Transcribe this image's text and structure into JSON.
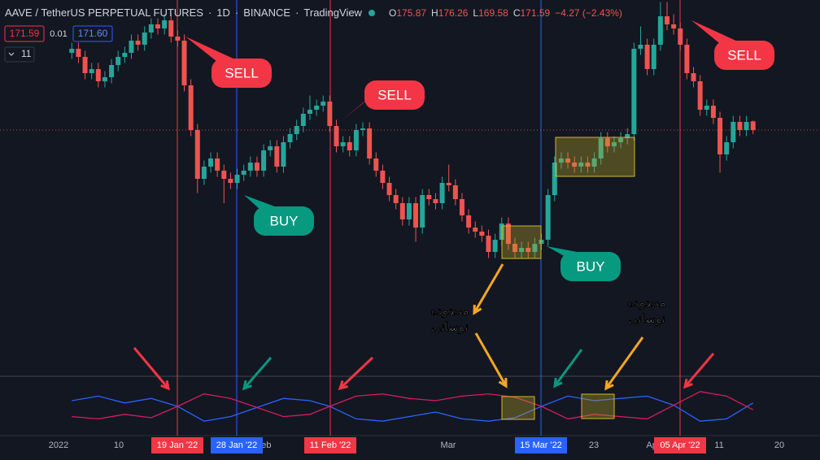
{
  "header": {
    "symbol": "AAVE / TetherUS PERPETUAL FUTURES",
    "interval": "1D",
    "exchange": "BINANCE",
    "source": "TradingView",
    "ohlc": [
      "O",
      "175.87",
      "H",
      "176.26",
      "L",
      "169.58",
      "C",
      "171.59",
      "−4.27 (−2.43%)"
    ],
    "sell_price": "171.59",
    "spread": "0.01",
    "buy_price": "171.60",
    "indicator_count": "11"
  },
  "time_axis": {
    "labels": [
      "2022",
      "10",
      "Feb",
      "Mar",
      "23",
      "Apr",
      "11",
      "20"
    ],
    "marked_dates": [
      "19 Jan '22",
      "28 Jan '22",
      "11 Feb '22",
      "15 Mar '22",
      "05 Apr '22"
    ]
  },
  "chart_data": [
    {
      "type": "candlestick",
      "up_color": "#26a69a",
      "down_color": "#ef5350",
      "ylim": [
        51.6,
        235.6
      ],
      "candles": [
        [
          209.6,
          214.6,
          206.6,
          211.6
        ],
        [
          211.6,
          214.6,
          204.6,
          207.6
        ],
        [
          207.6,
          210.6,
          196.6,
          199.6
        ],
        [
          199.6,
          204.6,
          196.6,
          201.6
        ],
        [
          201.6,
          204.6,
          192.6,
          195.6
        ],
        [
          195.6,
          200.6,
          192.6,
          197.6
        ],
        [
          197.6,
          206.6,
          194.6,
          203.6
        ],
        [
          203.6,
          210.6,
          200.6,
          207.6
        ],
        [
          207.6,
          212.6,
          204.6,
          209.6
        ],
        [
          209.6,
          218.6,
          206.6,
          215.6
        ],
        [
          215.6,
          218.6,
          210.6,
          213.6
        ],
        [
          213.6,
          222.6,
          210.6,
          219.6
        ],
        [
          219.6,
          226.6,
          216.6,
          223.6
        ],
        [
          223.6,
          226.6,
          218.6,
          221.6
        ],
        [
          221.6,
          228.6,
          218.6,
          225.6
        ],
        [
          225.6,
          228.6,
          214.6,
          217.6
        ],
        [
          217.6,
          220.6,
          212.6,
          215.6
        ],
        [
          215.6,
          218.6,
          190.6,
          193.6
        ],
        [
          193.6,
          196.6,
          168.6,
          171.6
        ],
        [
          171.6,
          174.6,
          140.6,
          147.6
        ],
        [
          147.6,
          156.6,
          144.6,
          153.6
        ],
        [
          153.6,
          160.6,
          150.6,
          157.6
        ],
        [
          157.6,
          160.6,
          148.6,
          151.6
        ],
        [
          151.6,
          154.6,
          135.6,
          147.6
        ],
        [
          147.6,
          150.6,
          142.6,
          145.6
        ],
        [
          145.6,
          152.6,
          142.6,
          149.6
        ],
        [
          149.6,
          154.6,
          146.6,
          151.6
        ],
        [
          151.6,
          158.6,
          148.6,
          155.6
        ],
        [
          155.6,
          158.6,
          148.6,
          151.6
        ],
        [
          151.6,
          164.6,
          148.6,
          161.6
        ],
        [
          161.6,
          166.6,
          158.6,
          163.6
        ],
        [
          163.6,
          166.6,
          150.6,
          153.6
        ],
        [
          153.6,
          168.6,
          150.6,
          165.6
        ],
        [
          165.6,
          172.6,
          162.6,
          169.6
        ],
        [
          169.6,
          176.6,
          166.6,
          173.6
        ],
        [
          173.6,
          182.6,
          170.6,
          179.6
        ],
        [
          179.6,
          188.6,
          176.6,
          181.6
        ],
        [
          181.6,
          186.6,
          178.6,
          183.6
        ],
        [
          183.6,
          188.6,
          180.6,
          185.6
        ],
        [
          185.6,
          188.6,
          170.6,
          173.6
        ],
        [
          173.6,
          176.6,
          160.6,
          163.6
        ],
        [
          163.6,
          168.6,
          160.6,
          165.6
        ],
        [
          165.6,
          168.6,
          158.6,
          161.6
        ],
        [
          161.6,
          174.6,
          158.6,
          171.6
        ],
        [
          171.6,
          175.4,
          168.6,
          172.4
        ],
        [
          172.4,
          175.4,
          154.6,
          157.6
        ],
        [
          157.6,
          160.6,
          148.6,
          151.6
        ],
        [
          151.6,
          154.6,
          142.6,
          145.6
        ],
        [
          145.6,
          148.6,
          136.6,
          139.6
        ],
        [
          139.6,
          142.6,
          132.6,
          135.6
        ],
        [
          135.6,
          138.6,
          124.6,
          127.6
        ],
        [
          127.6,
          138.6,
          124.6,
          135.6
        ],
        [
          135.6,
          138.6,
          116.6,
          123.6
        ],
        [
          123.6,
          142.6,
          120.6,
          139.6
        ],
        [
          139.6,
          142.6,
          134.6,
          137.6
        ],
        [
          137.6,
          140.6,
          132.6,
          135.6
        ],
        [
          135.6,
          148.6,
          132.6,
          145.6
        ],
        [
          145.6,
          154.6,
          141.4,
          144.4
        ],
        [
          144.4,
          147.4,
          134.6,
          137.6
        ],
        [
          137.6,
          140.6,
          126.6,
          129.6
        ],
        [
          129.6,
          132.6,
          120.6,
          123.6
        ],
        [
          123.6,
          126.6,
          118.6,
          121.6
        ],
        [
          121.6,
          124.6,
          116.6,
          119.6
        ],
        [
          119.6,
          122.6,
          108.6,
          111.6
        ],
        [
          111.6,
          120.6,
          108.6,
          117.6
        ],
        [
          117.6,
          128.6,
          114.6,
          125.6
        ],
        [
          125.6,
          128.6,
          112.6,
          115.6
        ],
        [
          115.6,
          118.6,
          108.6,
          111.6
        ],
        [
          111.6,
          116.6,
          108.6,
          113.6
        ],
        [
          113.6,
          116.6,
          108.6,
          111.6
        ],
        [
          111.6,
          118.6,
          108.6,
          115.6
        ],
        [
          115.6,
          120.6,
          112.6,
          117.6
        ],
        [
          117.6,
          142.6,
          114.6,
          139.6
        ],
        [
          139.6,
          158.6,
          136.6,
          155.6
        ],
        [
          155.6,
          160.6,
          152.6,
          157.6
        ],
        [
          157.6,
          160.6,
          152.6,
          155.6
        ],
        [
          155.6,
          158.6,
          150.6,
          153.6
        ],
        [
          153.6,
          158.6,
          150.6,
          155.6
        ],
        [
          155.6,
          158.6,
          150.6,
          153.6
        ],
        [
          153.6,
          160.6,
          150.6,
          157.6
        ],
        [
          157.6,
          170.6,
          154.6,
          167.6
        ],
        [
          167.6,
          170.6,
          160.6,
          163.6
        ],
        [
          163.6,
          168.6,
          160.6,
          165.6
        ],
        [
          165.6,
          170.6,
          162.6,
          167.6
        ],
        [
          167.6,
          172.6,
          164.6,
          169.6
        ],
        [
          169.6,
          214.6,
          166.6,
          211.6
        ],
        [
          211.6,
          222.6,
          208.6,
          213.6
        ],
        [
          213.6,
          216.6,
          198.6,
          201.6
        ],
        [
          201.6,
          216.6,
          198.6,
          213.6
        ],
        [
          213.6,
          234.6,
          210.6,
          227.6
        ],
        [
          227.6,
          234.6,
          220.6,
          223.6
        ],
        [
          223.6,
          228.6,
          218.6,
          221.6
        ],
        [
          221.6,
          224.6,
          210.6,
          213.6
        ],
        [
          213.6,
          216.6,
          196.6,
          199.6
        ],
        [
          199.6,
          202.6,
          192.6,
          195.6
        ],
        [
          195.6,
          198.6,
          178.6,
          181.6
        ],
        [
          181.6,
          186.6,
          178.6,
          183.6
        ],
        [
          183.6,
          186.6,
          174.6,
          177.6
        ],
        [
          177.6,
          180.6,
          150.6,
          159.6
        ],
        [
          159.6,
          168.6,
          156.6,
          165.6
        ],
        [
          165.6,
          178.6,
          162.6,
          175.6
        ],
        [
          175.6,
          178.6,
          168.6,
          171.6
        ],
        [
          171.6,
          178.6,
          168.6,
          175.6
        ],
        [
          175.87,
          176.26,
          169.58,
          171.59
        ]
      ],
      "annotations": [
        "SELL",
        "SELL",
        "BUY",
        "BUY",
        "SELL"
      ],
      "range_notes": [
        [
          "محدوده",
          "نوسانی"
        ],
        [
          "محدوده",
          "نوسانی"
        ]
      ]
    },
    {
      "type": "line",
      "ylim": [
        0,
        50
      ],
      "x": [
        0,
        4,
        8,
        12,
        16,
        20,
        24,
        28,
        32,
        36,
        39,
        43,
        47,
        51,
        55,
        59,
        63,
        67,
        71,
        75,
        79,
        83,
        87,
        91,
        95,
        99,
        103
      ],
      "series": [
        {
          "color": "#2962ff",
          "values": [
            30,
            34,
            28,
            32,
            25,
            12,
            16,
            24,
            32,
            30,
            25,
            14,
            12,
            16,
            20,
            14,
            12,
            15,
            25,
            34,
            30,
            32,
            34,
            26,
            12,
            14,
            28
          ]
        },
        {
          "color": "#d81b60",
          "values": [
            16,
            14,
            18,
            15,
            25,
            36,
            32,
            24,
            16,
            18,
            25,
            34,
            36,
            32,
            30,
            34,
            36,
            33,
            25,
            14,
            18,
            16,
            14,
            26,
            38,
            34,
            22
          ]
        }
      ]
    }
  ]
}
